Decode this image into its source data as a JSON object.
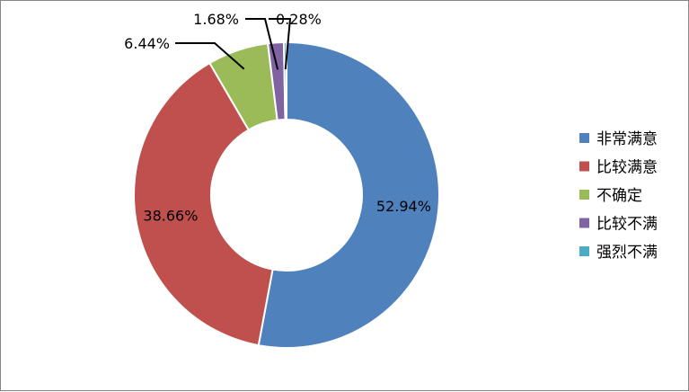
{
  "chart_data": {
    "type": "pie",
    "variant": "donut",
    "series": [
      {
        "values": [
          52.94,
          38.66,
          6.44,
          1.68,
          0.28
        ]
      }
    ],
    "categories": [
      "非常满意",
      "比较满意",
      "不确定",
      "比较不满",
      "强烈不满"
    ],
    "values": [
      52.94,
      38.66,
      6.44,
      1.68,
      0.28
    ],
    "data_labels": [
      "52.94%",
      "38.66%",
      "6.44%",
      "1.68%",
      "0.28%"
    ],
    "colors": [
      "#4f81bd",
      "#c0504d",
      "#9bbb59",
      "#8064a2",
      "#4bacc6"
    ],
    "legend_position": "right",
    "title": ""
  }
}
